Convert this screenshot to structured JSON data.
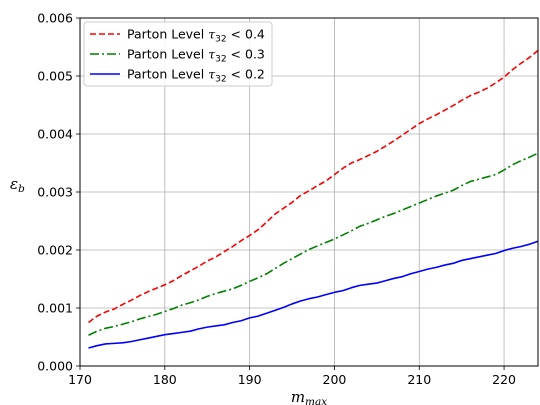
{
  "chart_data": {
    "type": "line",
    "title": "",
    "xlabel": "m",
    "xlabel_sub": "max",
    "ylabel": "ε",
    "ylabel_sub": "b",
    "xlim": [
      170,
      224
    ],
    "ylim": [
      0,
      0.006
    ],
    "xticks": [
      170,
      180,
      190,
      200,
      210,
      220
    ],
    "xtick_labels": [
      "170",
      "180",
      "190",
      "200",
      "210",
      "220"
    ],
    "yticks": [
      0,
      0.001,
      0.002,
      0.003,
      0.004,
      0.005,
      0.006
    ],
    "ytick_labels": [
      "0.000",
      "0.001",
      "0.002",
      "0.003",
      "0.004",
      "0.005",
      "0.006"
    ],
    "grid": true,
    "legend_position": "upper-left",
    "x": [
      171,
      172,
      173,
      174,
      175,
      176,
      177,
      178,
      179,
      180,
      181,
      182,
      183,
      184,
      185,
      186,
      187,
      188,
      189,
      190,
      191,
      192,
      193,
      194,
      195,
      196,
      197,
      198,
      199,
      200,
      201,
      202,
      203,
      204,
      205,
      206,
      207,
      208,
      209,
      210,
      211,
      212,
      213,
      214,
      215,
      216,
      217,
      218,
      219,
      220,
      221,
      222,
      223,
      224
    ],
    "series": [
      {
        "name": "Parton Level τ32 < 0.4",
        "legend_prefix": "Parton Level ",
        "legend_tau": "τ",
        "legend_sub": "32",
        "legend_suffix": " < 0.4",
        "color": "#ff0000",
        "dash": "6,3",
        "values": [
          0.00075,
          0.00086,
          0.00093,
          0.00098,
          0.00106,
          0.00113,
          0.00121,
          0.00128,
          0.00134,
          0.0014,
          0.00147,
          0.00156,
          0.00164,
          0.00172,
          0.00181,
          0.00188,
          0.00197,
          0.00206,
          0.00216,
          0.00225,
          0.00235,
          0.00248,
          0.00262,
          0.00272,
          0.00282,
          0.00294,
          0.00302,
          0.00311,
          0.00319,
          0.0033,
          0.00341,
          0.0035,
          0.00356,
          0.00363,
          0.0037,
          0.00379,
          0.00388,
          0.00398,
          0.00408,
          0.00418,
          0.00426,
          0.00433,
          0.00441,
          0.00449,
          0.00458,
          0.00466,
          0.00472,
          0.00479,
          0.00488,
          0.00498,
          0.00511,
          0.00522,
          0.00532,
          0.00544
        ]
      },
      {
        "name": "Parton Level τ32 < 0.3",
        "legend_prefix": "Parton Level ",
        "legend_tau": "τ",
        "legend_sub": "32",
        "legend_suffix": " < 0.3",
        "color": "#008000",
        "dash": "9,3,2,3",
        "values": [
          0.00053,
          0.0006,
          0.00065,
          0.00068,
          0.00072,
          0.00076,
          0.00081,
          0.00085,
          0.00089,
          0.00094,
          0.00099,
          0.00105,
          0.00109,
          0.00114,
          0.0012,
          0.00125,
          0.00129,
          0.00133,
          0.00139,
          0.00146,
          0.00152,
          0.00159,
          0.00168,
          0.00177,
          0.00185,
          0.00193,
          0.00201,
          0.00207,
          0.00213,
          0.00219,
          0.00226,
          0.00233,
          0.00241,
          0.00246,
          0.00252,
          0.00258,
          0.00263,
          0.00269,
          0.00275,
          0.00281,
          0.00287,
          0.00293,
          0.00298,
          0.00303,
          0.00311,
          0.00318,
          0.00322,
          0.00326,
          0.0033,
          0.00338,
          0.00347,
          0.00354,
          0.0036,
          0.00367
        ]
      },
      {
        "name": "Parton Level τ32 < 0.2",
        "legend_prefix": "Parton Level ",
        "legend_tau": "τ",
        "legend_sub": "32",
        "legend_suffix": " < 0.2",
        "color": "#0000ff",
        "dash": "",
        "values": [
          0.00031,
          0.00035,
          0.00038,
          0.00039,
          0.0004,
          0.00042,
          0.00045,
          0.00048,
          0.00051,
          0.00054,
          0.00056,
          0.00058,
          0.0006,
          0.00064,
          0.00067,
          0.00069,
          0.00071,
          0.00075,
          0.00078,
          0.00083,
          0.00086,
          0.00091,
          0.00096,
          0.00101,
          0.00107,
          0.00112,
          0.00116,
          0.00119,
          0.00123,
          0.00127,
          0.0013,
          0.00135,
          0.00139,
          0.00141,
          0.00143,
          0.00147,
          0.00151,
          0.00154,
          0.00159,
          0.00163,
          0.00167,
          0.0017,
          0.00174,
          0.00177,
          0.00182,
          0.00185,
          0.00188,
          0.00191,
          0.00194,
          0.00199,
          0.00203,
          0.00206,
          0.0021,
          0.00215
        ]
      }
    ]
  }
}
